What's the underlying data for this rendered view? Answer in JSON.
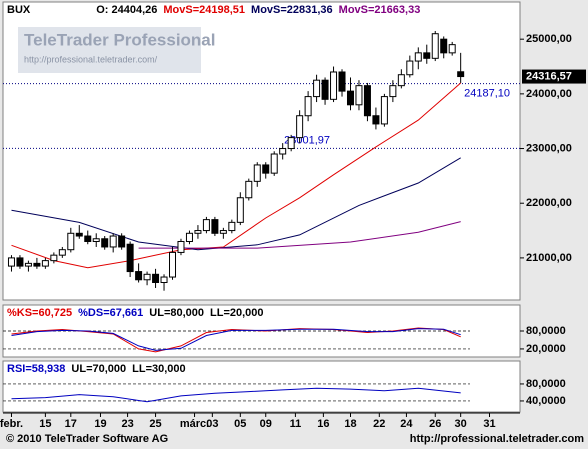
{
  "chart_data": [
    {
      "type": "candlestick",
      "title": "BUX",
      "subtitle": "O: 24404,26",
      "watermark": [
        "TeleTrader Professional",
        "http://professional.teletrader.com/"
      ],
      "xlim": [
        -1,
        60
      ],
      "xticks": [
        {
          "value": 0,
          "label": "febr."
        },
        {
          "value": 4,
          "label": "15"
        },
        {
          "value": 7,
          "label": "17"
        },
        {
          "value": 10.5,
          "label": "19"
        },
        {
          "value": 13.7,
          "label": "23"
        },
        {
          "value": 17,
          "label": "25"
        },
        {
          "value": 21.6,
          "label": "márc."
        },
        {
          "value": 23.7,
          "label": "03"
        },
        {
          "value": 27,
          "label": "05"
        },
        {
          "value": 30,
          "label": "09"
        },
        {
          "value": 33.5,
          "label": "11"
        },
        {
          "value": 36.8,
          "label": "16"
        },
        {
          "value": 40,
          "label": "18"
        },
        {
          "value": 43.4,
          "label": "22"
        },
        {
          "value": 46.6,
          "label": "24"
        },
        {
          "value": 50,
          "label": "26"
        },
        {
          "value": 53,
          "label": "30"
        },
        {
          "value": 56.4,
          "label": "31"
        }
      ],
      "ylim": [
        20230,
        25680
      ],
      "yticks": [
        {
          "value": 21000,
          "label": "21000,00"
        },
        {
          "value": 22000,
          "label": "22000,00"
        },
        {
          "value": 23000,
          "label": "23000,00"
        },
        {
          "value": 24000,
          "label": "24000,00"
        },
        {
          "value": 25000,
          "label": "25000,00"
        }
      ],
      "open": [
        20850,
        21000,
        20850,
        20900,
        20850,
        20950,
        21050,
        21150,
        21450,
        21400,
        21300,
        21350,
        21200,
        21400,
        21250,
        20750,
        20600,
        20700,
        20550,
        20650,
        21100,
        21300,
        21450,
        21500,
        21700,
        21450,
        21500,
        21650,
        22100,
        22400,
        22700,
        22550,
        22900,
        23000,
        23200,
        23600,
        23950,
        24250,
        23900,
        24400,
        24050,
        23800,
        24150,
        23600,
        23450,
        23950,
        24150,
        24350,
        24600,
        24750,
        24650,
        25000,
        24750,
        24404.26
      ],
      "high": [
        21050,
        21050,
        20950,
        21000,
        21000,
        21100,
        21200,
        21550,
        21600,
        21500,
        21450,
        21400,
        21450,
        21450,
        21300,
        20900,
        20750,
        20800,
        20700,
        21200,
        21350,
        21500,
        21600,
        21750,
        21750,
        21550,
        21700,
        22200,
        22450,
        22750,
        22750,
        22950,
        23100,
        23250,
        23700,
        24050,
        24350,
        24300,
        24500,
        24450,
        24300,
        24250,
        24200,
        23750,
        24000,
        24250,
        24450,
        24700,
        24850,
        24900,
        25150,
        25050,
        24950,
        24750
      ],
      "low": [
        20750,
        20800,
        20750,
        20800,
        20800,
        20900,
        21000,
        21100,
        21350,
        21250,
        21200,
        21150,
        21100,
        21150,
        20650,
        20550,
        20500,
        20450,
        20400,
        20600,
        21050,
        21250,
        21350,
        21450,
        21400,
        21350,
        21450,
        21600,
        22050,
        22300,
        22450,
        22500,
        22800,
        22950,
        23100,
        23500,
        23850,
        23800,
        23850,
        23950,
        23700,
        23700,
        23500,
        23350,
        23400,
        23850,
        24100,
        24300,
        24450,
        24550,
        24600,
        24650,
        24700,
        24200
      ],
      "close": [
        21000,
        20850,
        20900,
        20850,
        20950,
        21050,
        21150,
        21450,
        21400,
        21300,
        21350,
        21200,
        21400,
        21200,
        20750,
        20600,
        20700,
        20550,
        20650,
        21100,
        21300,
        21450,
        21500,
        21700,
        21450,
        21500,
        21650,
        22100,
        22400,
        22700,
        22550,
        22900,
        23000,
        23200,
        23600,
        23950,
        24250,
        23900,
        24400,
        24050,
        23800,
        24150,
        23600,
        23450,
        23950,
        24150,
        24350,
        24600,
        24750,
        24650,
        25100,
        24750,
        24900,
        24316.57
      ],
      "last_price_label": "24316,57",
      "series": [
        {
          "name": "MovS=24198,51",
          "color": "#e00000",
          "x": [
            0,
            5,
            9,
            14,
            20,
            25,
            30,
            34,
            38,
            43,
            48,
            53
          ],
          "values": [
            21230,
            20950,
            20820,
            20950,
            21150,
            21200,
            21730,
            22100,
            22520,
            23030,
            23520,
            24198.51
          ]
        },
        {
          "name": "MovS=22831,36",
          "color": "#00005a",
          "x": [
            0,
            8,
            15,
            22,
            29,
            34,
            41,
            48,
            53
          ],
          "values": [
            21870,
            21650,
            21290,
            21150,
            21240,
            21420,
            21960,
            22370,
            22831.36
          ]
        },
        {
          "name": "MovS=21663,33",
          "color": "#800080",
          "x": [
            15,
            29,
            40,
            48,
            53
          ],
          "values": [
            21180,
            21180,
            21290,
            21470,
            21663.33
          ]
        }
      ],
      "hlines": [
        {
          "value": 24187.1,
          "label": "24187,10"
        },
        {
          "value": 23001.97,
          "label": "23001,97"
        }
      ]
    },
    {
      "type": "line",
      "xlim": [
        -1,
        60
      ],
      "ylim": [
        -7,
        167
      ],
      "yticks": [
        {
          "value": 80,
          "label": "80,0000"
        },
        {
          "value": 20,
          "label": "20,0000"
        }
      ],
      "annotations": [
        "UL=80,000",
        "LL=20,000"
      ],
      "series": [
        {
          "name": "%KS=60,725",
          "color": "#e00000",
          "x": [
            0,
            3,
            6,
            9,
            12,
            15,
            17,
            20,
            23,
            26,
            30,
            34,
            38,
            42,
            45,
            48,
            51,
            53
          ],
          "values": [
            70,
            80,
            85,
            78,
            70,
            20,
            10,
            30,
            75,
            85,
            80,
            88,
            85,
            75,
            80,
            90,
            85,
            60.725
          ]
        },
        {
          "name": "%DS=67,661",
          "color": "#0000c0",
          "x": [
            0,
            3,
            6,
            9,
            12,
            15,
            17,
            20,
            23,
            26,
            30,
            34,
            38,
            42,
            45,
            48,
            51,
            53
          ],
          "values": [
            65,
            78,
            82,
            80,
            72,
            30,
            15,
            22,
            65,
            82,
            82,
            86,
            86,
            78,
            78,
            88,
            86,
            67.661
          ]
        }
      ]
    },
    {
      "type": "line",
      "xlim": [
        -1,
        60
      ],
      "ylim": [
        14,
        134
      ],
      "yticks": [
        {
          "value": 80,
          "label": "80,0000"
        },
        {
          "value": 40,
          "label": "40,0000"
        }
      ],
      "annotations": [
        "UL=70,000",
        "LL=30,000"
      ],
      "series": [
        {
          "name": "RSI=58,938",
          "color": "#0000c0",
          "x": [
            0,
            4,
            8,
            12,
            16,
            20,
            24,
            28,
            32,
            36,
            40,
            44,
            48,
            53
          ],
          "values": [
            45,
            48,
            55,
            50,
            38,
            52,
            58,
            62,
            66,
            70,
            68,
            64,
            70,
            58.938
          ]
        }
      ]
    }
  ],
  "footer": {
    "copyright": "© 2010 TeleTrader Software AG",
    "url": "http://professional.teletrader.com"
  }
}
